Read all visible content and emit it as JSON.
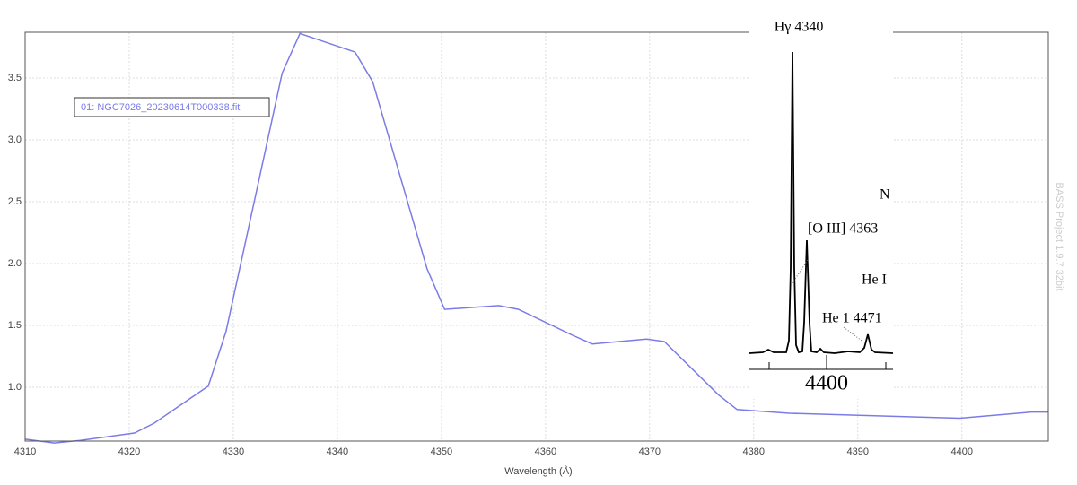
{
  "chart_data": {
    "type": "line",
    "x_label": "Wavelength (Å)",
    "series": [
      {
        "name": "01: NGC7026_20230614T000338.fit",
        "color": "#7b7be8",
        "x": [
          4310,
          4312.8,
          4315.3,
          4320.5,
          4322.4,
          4327.6,
          4329.3,
          4334.7,
          4336.4,
          4341.7,
          4343.4,
          4348.6,
          4350.3,
          4355.5,
          4357.4,
          4362.6,
          4364.5,
          4369.7,
          4371.4,
          4376.6,
          4378.4,
          4383.4,
          4399.8,
          4406.7,
          4408.3
        ],
        "values": [
          0.58,
          0.55,
          0.57,
          0.63,
          0.71,
          1.01,
          1.45,
          3.54,
          3.86,
          3.71,
          3.47,
          1.96,
          1.63,
          1.66,
          1.63,
          1.42,
          1.35,
          1.39,
          1.37,
          0.94,
          0.82,
          0.79,
          0.75,
          0.8,
          0.8
        ]
      }
    ],
    "xlim": [
      4310,
      4408.3
    ],
    "ylim": [
      0.565,
      3.87
    ],
    "xticks": [
      4310,
      4320,
      4330,
      4340,
      4350,
      4360,
      4370,
      4380,
      4390,
      4400
    ],
    "yticks": [
      {
        "value": 1,
        "label": "1.0"
      },
      1.5,
      {
        "value": 2,
        "label": "2.0"
      },
      2.5,
      {
        "value": 3,
        "label": "3.0"
      },
      3.5
    ],
    "grid": true
  },
  "watermark": "BASS Project 1.9.7 32bit",
  "inset": {
    "title": "Hγ 4340",
    "labels": [
      "N",
      "[O III] 4363",
      "He I",
      "He 1 4471"
    ],
    "axis_label": "4400"
  }
}
